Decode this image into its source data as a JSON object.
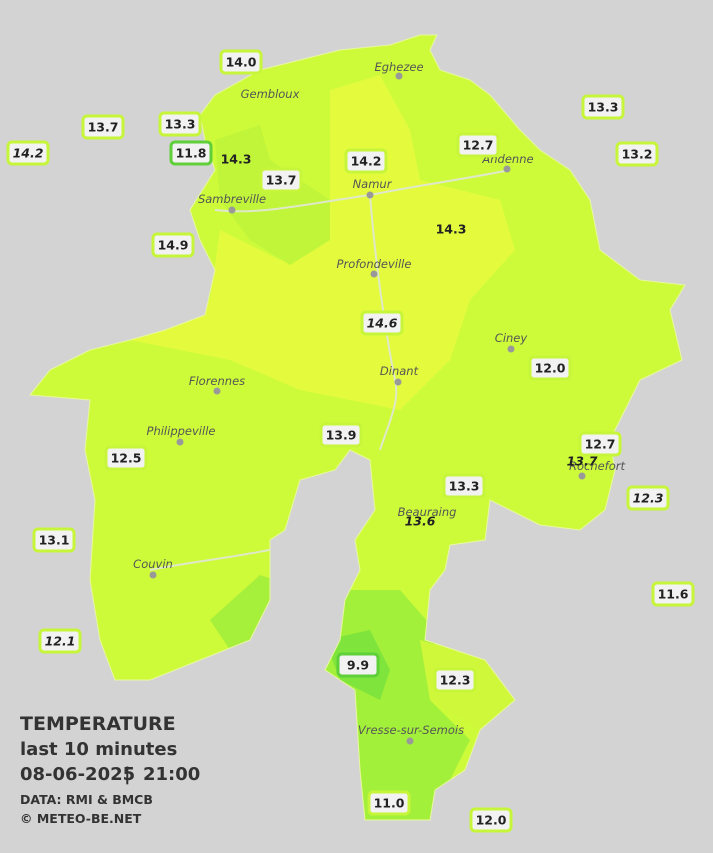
{
  "title": {
    "line1": "TEMPERATURE",
    "line2": "last 10 minutes",
    "date": "08-06-2025",
    "separator": "|",
    "time": "21:00",
    "source": "DATA: RMI & BMCB",
    "copyright": "© METEO-BE.NET"
  },
  "cities": [
    "Eghezee",
    "Gembloux",
    "Andenne",
    "Namur",
    "Sambreville",
    "Profondeville",
    "Ciney",
    "Dinant",
    "Florennes",
    "Philippeville",
    "Rochefort",
    "Beauraing",
    "Couvin",
    "Vresse-sur-Semois"
  ],
  "stations": [
    "14.0",
    "13.3",
    "13.7",
    "14.2",
    "11.8",
    "14.3",
    "13.7",
    "14.2",
    "12.7",
    "13.3",
    "13.2",
    "14.9",
    "14.3",
    "14.6",
    "12.0",
    "13.9",
    "12.7",
    "13.7",
    "12.5",
    "13.3",
    "12.3",
    "13.6",
    "13.1",
    "11.6",
    "12.1",
    "9.9",
    "12.3",
    "11.0",
    "12.0"
  ]
}
